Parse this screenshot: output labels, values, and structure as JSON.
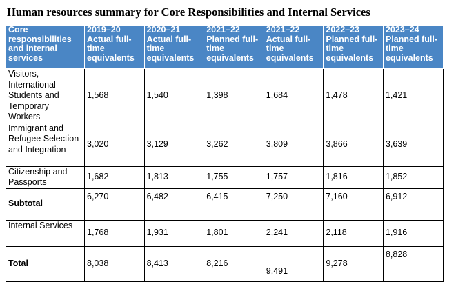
{
  "title": "Human resources summary for Core Responsibilities and Internal Services",
  "header": [
    "Core responsibilities and internal services",
    "2019–20 Actual full-time equivalents",
    "2020–21 Actual full-time equivalents",
    "2021–22 Planned full-time equivalents",
    "2021–22 Actual full-time equivalents",
    "2022–23 Planned full-time equivalents",
    "2023–24 Planned full-time equivalents"
  ],
  "rows": [
    {
      "label": "Visitors, International Students and Temporary Workers",
      "values": [
        "1,568",
        "1,540",
        "1,398",
        "1,684",
        "1,478",
        "1,421"
      ]
    },
    {
      "label": "Immigrant and Refugee Selection and Integration",
      "values": [
        "3,020",
        "3,129",
        "3,262",
        "3,809",
        "3,866",
        "3,639"
      ]
    },
    {
      "label": "Citizenship and Passports",
      "values": [
        "1,682",
        "1,813",
        "1,755",
        "1,757",
        "1,816",
        "1,852"
      ]
    },
    {
      "label": "Subtotal",
      "values": [
        "6,270",
        "6,482",
        "6,415",
        "7,250",
        "7,160",
        "6,912"
      ]
    },
    {
      "label": "Internal Services",
      "values": [
        "1,768",
        "1,931",
        "1,801",
        "2,241",
        "2,118",
        "1,916"
      ]
    },
    {
      "label": "Total",
      "values": [
        "8,038",
        "8,413",
        "8,216",
        "9,491",
        "9,278",
        "8,828"
      ]
    }
  ]
}
